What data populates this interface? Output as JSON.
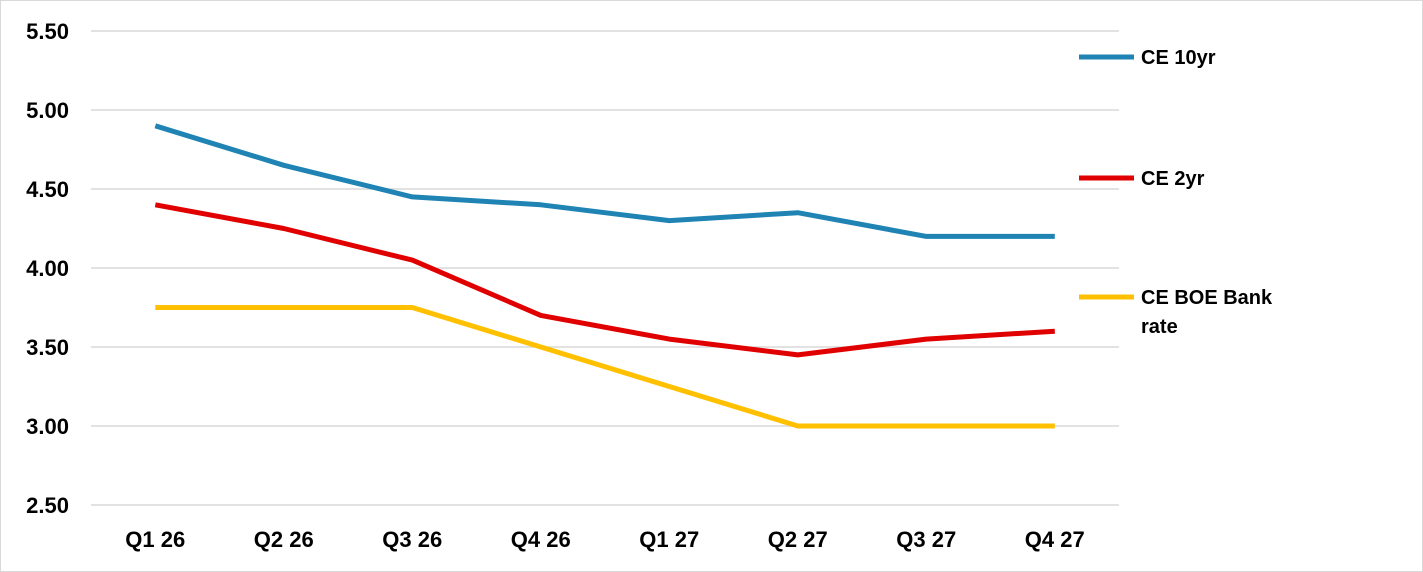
{
  "chart_data": {
    "type": "line",
    "title": "",
    "xlabel": "",
    "ylabel": "",
    "categories": [
      "Q1 26",
      "Q2 26",
      "Q3 26",
      "Q4 26",
      "Q1 27",
      "Q2 27",
      "Q3 27",
      "Q4 27"
    ],
    "ylim": [
      2.5,
      5.5
    ],
    "yticks": [
      "2.50",
      "3.00",
      "3.50",
      "4.00",
      "4.50",
      "5.00",
      "5.50"
    ],
    "ytick_values": [
      2.5,
      3.0,
      3.5,
      4.0,
      4.5,
      5.0,
      5.5
    ],
    "grid": true,
    "legend_position": "right",
    "series": [
      {
        "name": "CE 10yr",
        "legend_lines": [
          "CE 10yr"
        ],
        "color": "#1F83B4",
        "values": [
          4.9,
          4.65,
          4.45,
          4.4,
          4.3,
          4.35,
          4.2,
          4.2
        ]
      },
      {
        "name": "CE 2yr",
        "legend_lines": [
          "CE 2yr"
        ],
        "color": "#E00000",
        "values": [
          4.4,
          4.25,
          4.05,
          3.7,
          3.55,
          3.45,
          3.55,
          3.6
        ]
      },
      {
        "name": "CE BOE Bank rate",
        "legend_lines": [
          "CE BOE Bank",
          "rate"
        ],
        "color": "#FFC000",
        "values": [
          3.75,
          3.75,
          3.75,
          3.5,
          3.25,
          3.0,
          3.0,
          3.0
        ]
      }
    ]
  }
}
